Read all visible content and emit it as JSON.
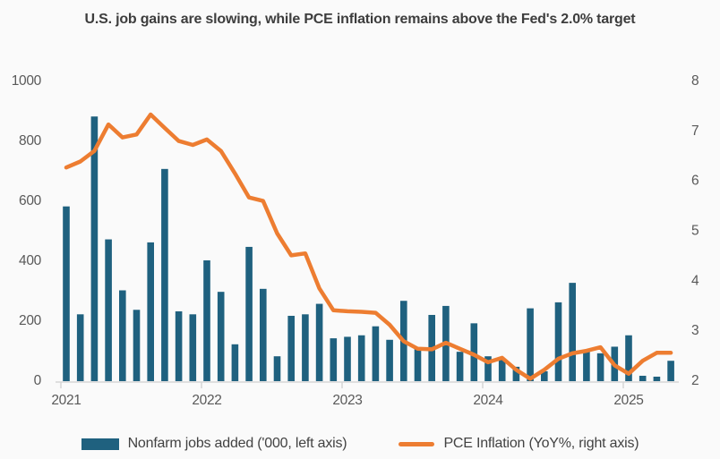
{
  "title": "U.S. job gains are slowing, while PCE inflation remains above the Fed's 2.0% target",
  "legend": {
    "bar_label": "Nonfarm jobs added ('000, left axis)",
    "line_label": "PCE Inflation (YoY%, right axis)"
  },
  "colors": {
    "bar": "#1f617f",
    "line": "#ed7d31",
    "axis_text": "#595959",
    "axis_line": "#d6d6d6",
    "title_text": "#3d3d3d",
    "background": "#fafafa"
  },
  "chart_data": {
    "type": "combo-bar-line",
    "grid": false,
    "legend_position": "bottom",
    "x_axis": {
      "tick_labels": [
        "2021",
        "2022",
        "2023",
        "2024",
        "2025"
      ],
      "points_per_tick": 10,
      "num_points": 44
    },
    "left_axis": {
      "min": 0,
      "max": 1000,
      "ticks": [
        "0",
        "200",
        "400",
        "600",
        "800",
        "1000"
      ]
    },
    "right_axis": {
      "min": 2,
      "max": 8,
      "ticks": [
        "2",
        "3",
        "4",
        "5",
        "6",
        "7",
        "8"
      ]
    },
    "series": [
      {
        "name": "Nonfarm jobs added ('000, left axis)",
        "type": "bar",
        "axis": "left",
        "color": "#1f617f",
        "values": [
          580,
          220,
          880,
          470,
          300,
          235,
          460,
          705,
          230,
          220,
          400,
          295,
          120,
          445,
          305,
          80,
          215,
          220,
          255,
          140,
          145,
          150,
          180,
          135,
          265,
          110,
          218,
          248,
          95,
          190,
          80,
          70,
          45,
          240,
          30,
          260,
          325,
          95,
          90,
          112,
          150,
          15,
          12,
          65
        ]
      },
      {
        "name": "PCE Inflation (YoY%, right axis)",
        "type": "line",
        "axis": "right",
        "color": "#ed7d31",
        "values": [
          6.26,
          6.38,
          6.59,
          7.12,
          6.86,
          6.92,
          7.32,
          7.05,
          6.79,
          6.71,
          6.82,
          6.59,
          6.14,
          5.66,
          5.59,
          4.94,
          4.5,
          4.54,
          3.84,
          3.4,
          3.38,
          3.37,
          3.35,
          3.11,
          2.78,
          2.63,
          2.62,
          2.75,
          2.63,
          2.51,
          2.36,
          2.45,
          2.21,
          2.03,
          2.21,
          2.43,
          2.54,
          2.59,
          2.66,
          2.3,
          2.13,
          2.39,
          2.55,
          2.55
        ]
      }
    ]
  }
}
